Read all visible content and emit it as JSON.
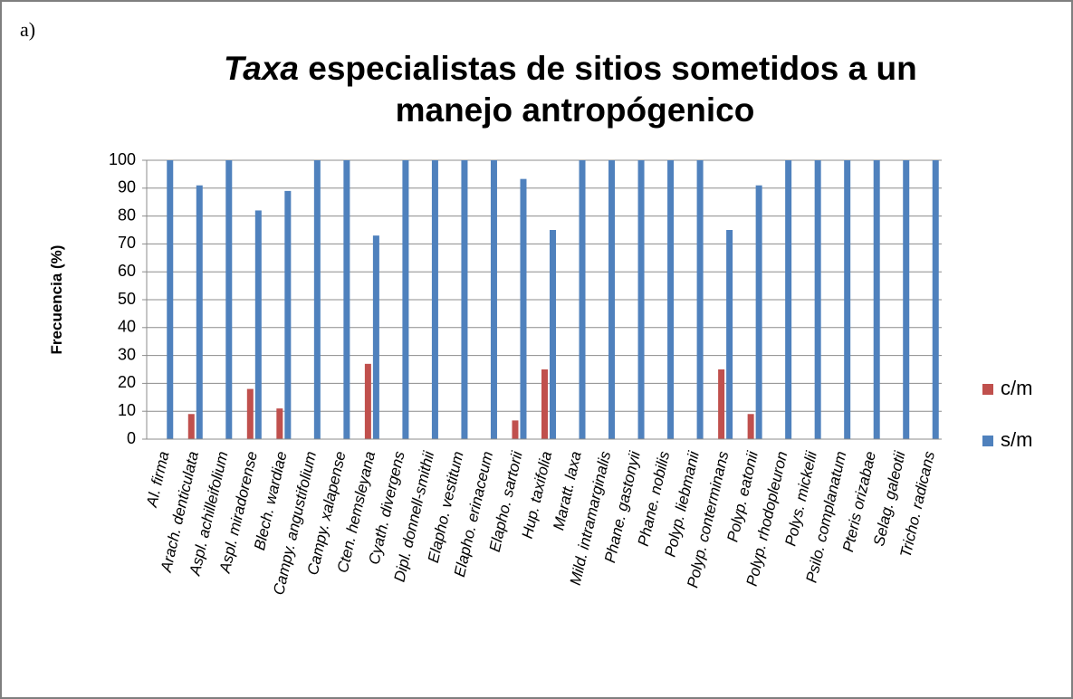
{
  "panel_label": "a)",
  "chart_data": {
    "type": "bar",
    "title_italic": "Taxa",
    "title": [
      "especialistas de sitios sometidos a un",
      "manejo antropógenico"
    ],
    "y_label": "Frecuencia (%)",
    "categories": [
      "Al. firma",
      "Arach. denticulata",
      "Aspl. achilleifolium",
      "Aspl. miradorense",
      "Blech. wardiae",
      "Campy. angustifolium",
      "Campy. xalapense",
      "Cten. hemsleyana",
      "Cyath. divergens",
      "Dipl. donnell-smithii",
      "Elapho. vestitum",
      "Elapho. erinaceum",
      "Elapho. sartorii",
      "Hup. taxifolia",
      "Maratt. laxa",
      "Mild. intramarginalis",
      "Phane. gastonyii",
      "Phane. nobilis",
      "Polyp. liebmanii",
      "Polyp. conterminans",
      "Polyp. eatonii",
      "Polyp. rhodopleuron",
      "Polys. mickelii",
      "Psilo. complanatum",
      "Pteris orizabae",
      "Selag. galeotii",
      "Tricho. radicans"
    ],
    "series": [
      {
        "name": "c/m",
        "color": "#c0504d",
        "values": [
          0,
          9,
          0,
          18,
          11,
          0,
          0,
          27,
          0,
          0,
          0,
          0,
          6.7,
          25,
          0,
          0,
          0,
          0,
          0,
          25,
          9,
          0,
          0,
          0,
          0,
          0,
          0
        ]
      },
      {
        "name": "s/m",
        "color": "#4f81bd",
        "values": [
          100,
          91,
          100,
          82,
          89,
          100,
          100,
          73,
          100,
          100,
          100,
          100,
          93.3,
          75,
          100,
          100,
          100,
          100,
          100,
          75,
          91,
          100,
          100,
          100,
          100,
          100,
          100
        ]
      }
    ],
    "ylim": [
      0,
      100
    ],
    "yticks": [
      0,
      10,
      20,
      30,
      40,
      50,
      60,
      70,
      80,
      90,
      100
    ],
    "grid": true,
    "legend": "right"
  }
}
